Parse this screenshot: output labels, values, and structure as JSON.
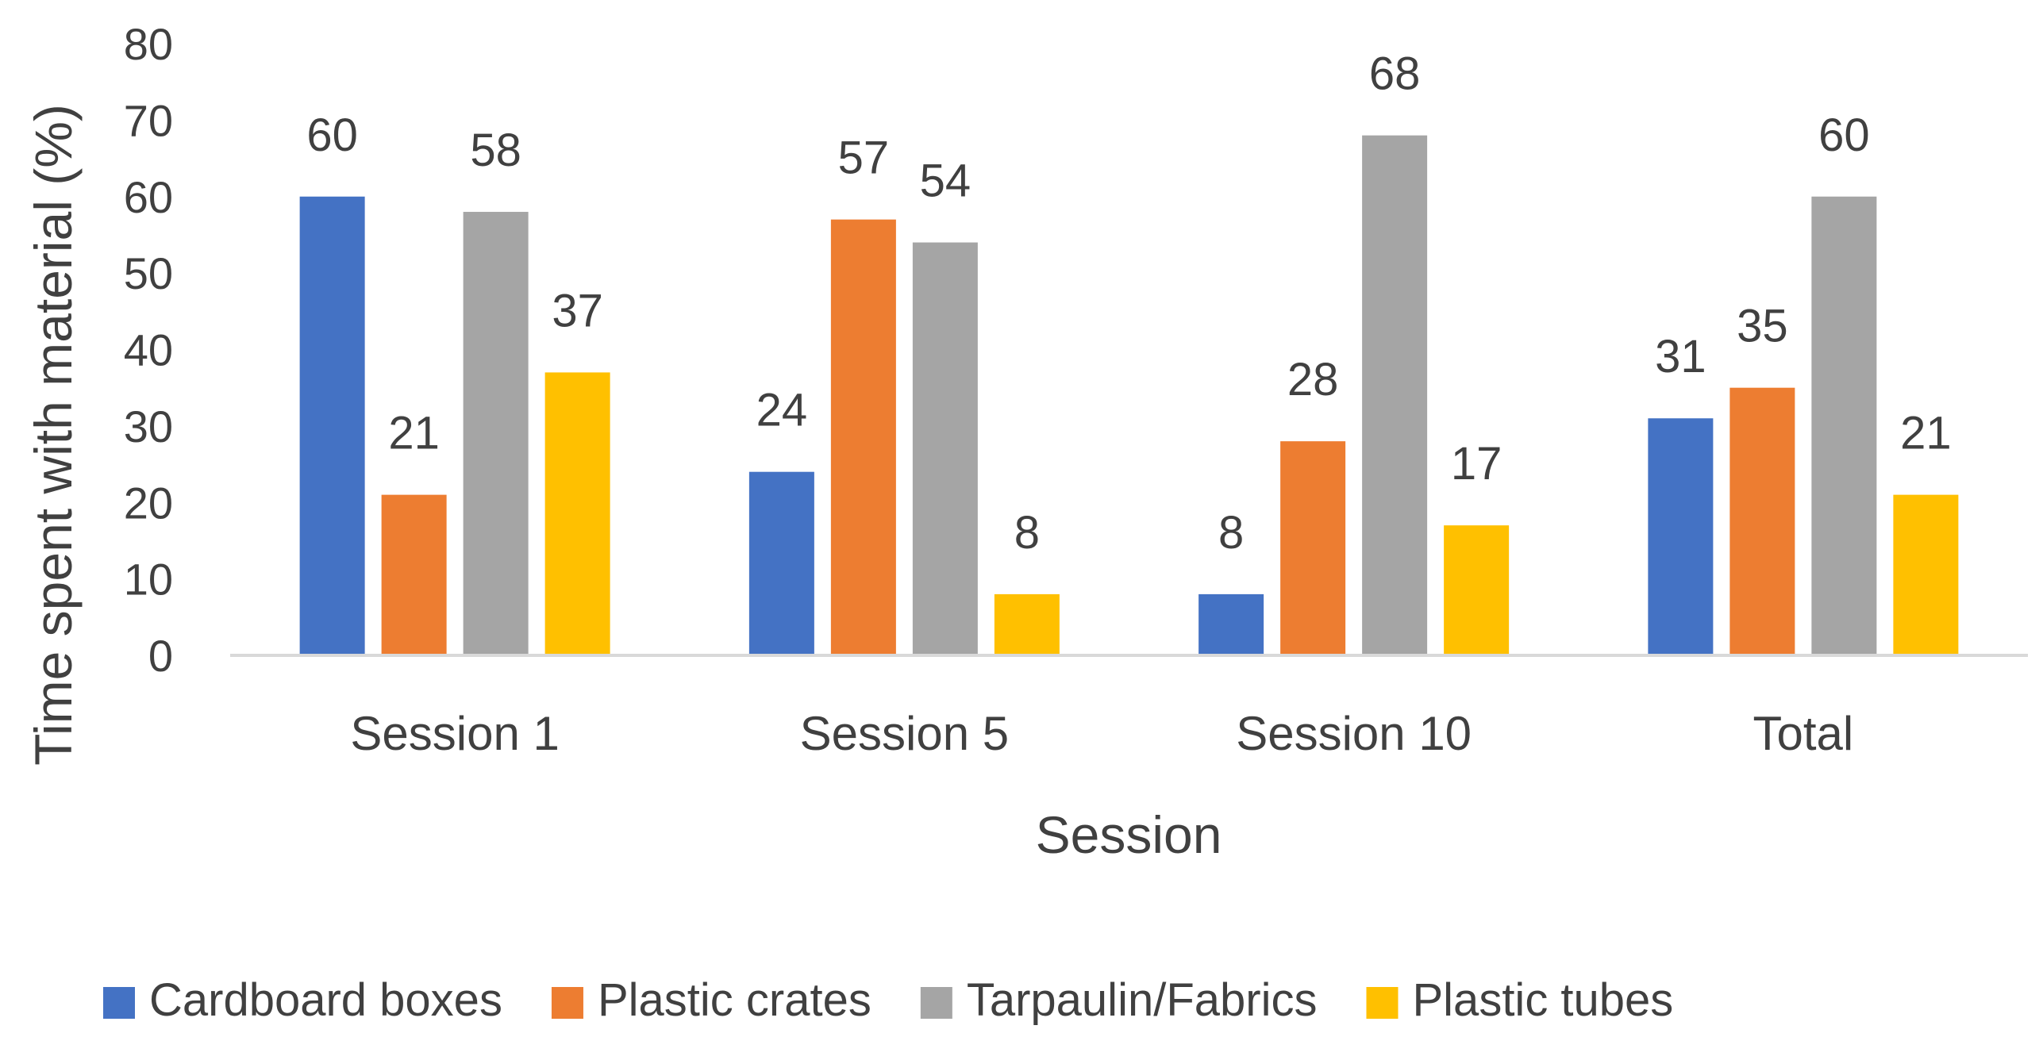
{
  "chart_data": {
    "type": "bar",
    "categories": [
      "Session 1",
      "Session 5",
      "Session 10",
      "Total"
    ],
    "series": [
      {
        "name": "Cardboard boxes",
        "color": "#4472C4",
        "values": [
          60,
          24,
          8,
          31
        ],
        "labels": [
          "60",
          "24",
          "8",
          "31"
        ]
      },
      {
        "name": "Plastic crates",
        "color": "#ED7D31",
        "values": [
          21,
          57,
          28,
          35
        ],
        "labels": [
          "21",
          "57",
          "28",
          "35"
        ]
      },
      {
        "name": "Tarpaulin/Fabrics",
        "color": "#A5A5A5",
        "values": [
          58,
          54,
          68,
          60
        ],
        "labels": [
          "58",
          "54",
          "68",
          "60"
        ]
      },
      {
        "name": "Plastic tubes",
        "color": "#FFC000",
        "values": [
          37,
          8,
          17,
          21
        ],
        "labels": [
          "37",
          "8",
          "17",
          "21"
        ]
      }
    ],
    "xlabel": "Session",
    "ylabel": "Time spent with material (%)",
    "ylim": [
      0,
      80
    ],
    "yticks": [
      "0",
      "10",
      "20",
      "30",
      "40",
      "50",
      "60",
      "70",
      "80"
    ],
    "grid": false,
    "legend_position": "bottom",
    "data_labels": true
  }
}
